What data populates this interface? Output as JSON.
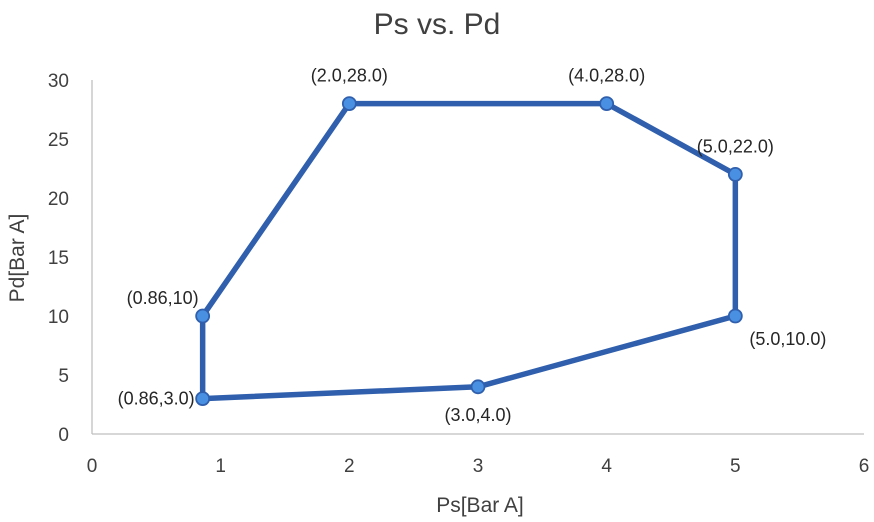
{
  "chart_data": {
    "type": "line",
    "title": "Ps vs. Pd",
    "xlabel": "Ps[Bar A]",
    "ylabel": "Pd[Bar A]",
    "xlim": [
      0,
      6
    ],
    "ylim": [
      0,
      30
    ],
    "x_ticks": [
      "0",
      "1",
      "2",
      "3",
      "4",
      "5",
      "6"
    ],
    "y_ticks": [
      "0",
      "5",
      "10",
      "15",
      "20",
      "25",
      "30"
    ],
    "grid": false,
    "legend": "none",
    "series": [
      {
        "color": "#2f5fad",
        "marker_color": "#4a90e2",
        "points": [
          {
            "x": 0.86,
            "y": 3.0,
            "label": "(0.86,3.0)",
            "label_pos": "left"
          },
          {
            "x": 0.86,
            "y": 10,
            "label": "(0.86,10)",
            "label_pos": "upper-left"
          },
          {
            "x": 2.0,
            "y": 28.0,
            "label": "(2.0,28.0)",
            "label_pos": "above"
          },
          {
            "x": 4.0,
            "y": 28.0,
            "label": "(4.0,28.0)",
            "label_pos": "above"
          },
          {
            "x": 5.0,
            "y": 22.0,
            "label": "(5.0,22.0)",
            "label_pos": "above"
          },
          {
            "x": 5.0,
            "y": 10.0,
            "label": "(5.0,10.0)",
            "label_pos": "below-right"
          },
          {
            "x": 3.0,
            "y": 4.0,
            "label": "(3.0,4.0)",
            "label_pos": "below"
          },
          {
            "x": 0.86,
            "y": 3.0,
            "label": "",
            "label_pos": "none"
          }
        ]
      }
    ]
  }
}
